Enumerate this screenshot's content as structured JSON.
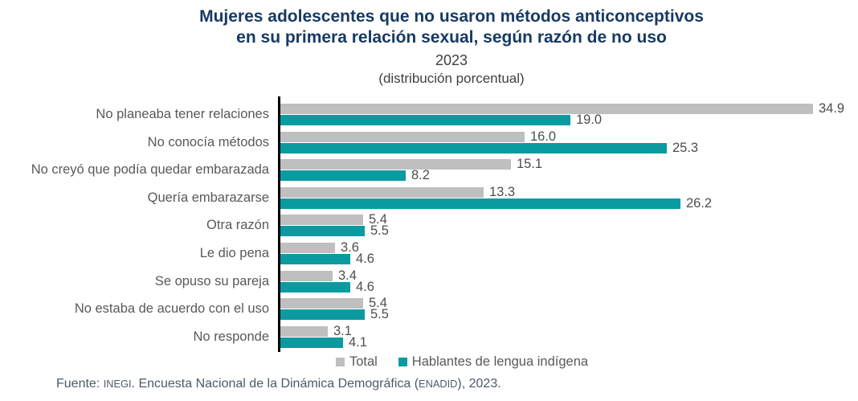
{
  "header": {
    "note": ""
  },
  "chart_data": {
    "type": "bar",
    "orientation": "horizontal",
    "title": "Mujeres adolescentes que no usaron métodos anticonceptivos en su primera relación sexual, según razón de no uso",
    "title_lines": [
      "Mujeres adolescentes que no usaron métodos anticonceptivos",
      "en su primera relación sexual, según razón de no uso"
    ],
    "year": "2023",
    "subtitle": "(distribución porcentual)",
    "categories": [
      "No planeaba tener relaciones",
      "No conocía métodos",
      "No creyó que podía quedar embarazada",
      "Quería embarazarse",
      "Otra razón",
      "Le dio pena",
      "Se opuso su pareja",
      "No estaba de acuerdo con el uso",
      "No responde"
    ],
    "series": [
      {
        "name": "Total",
        "color": "#BFBFBF",
        "values": [
          34.9,
          16.0,
          15.1,
          13.3,
          5.4,
          3.6,
          3.4,
          5.4,
          3.1
        ],
        "labels": [
          "34.9",
          "16.0",
          "15.1",
          "13.3",
          "5.4",
          "3.6",
          "3.4",
          "5.4",
          "3.1"
        ]
      },
      {
        "name": "Hablantes de lengua indígena",
        "color": "#0A9BA0",
        "values": [
          19.0,
          25.3,
          8.2,
          26.2,
          5.5,
          4.6,
          4.6,
          5.5,
          4.1
        ],
        "labels": [
          "19.0",
          "25.3",
          "8.2",
          "26.2",
          "5.5",
          "4.6",
          "4.6",
          "5.5",
          "4.1"
        ]
      }
    ],
    "xlim": [
      0,
      36
    ],
    "grid": false,
    "value_labels": true,
    "legend_position": "bottom",
    "axis_color": "#000000"
  },
  "source": {
    "prefix": "Fuente: ",
    "org": "INEGI",
    "middle": ". Encuesta Nacional de la Dinámica Demográfica (",
    "acronym": "ENADID",
    "suffix": "), 2023."
  }
}
